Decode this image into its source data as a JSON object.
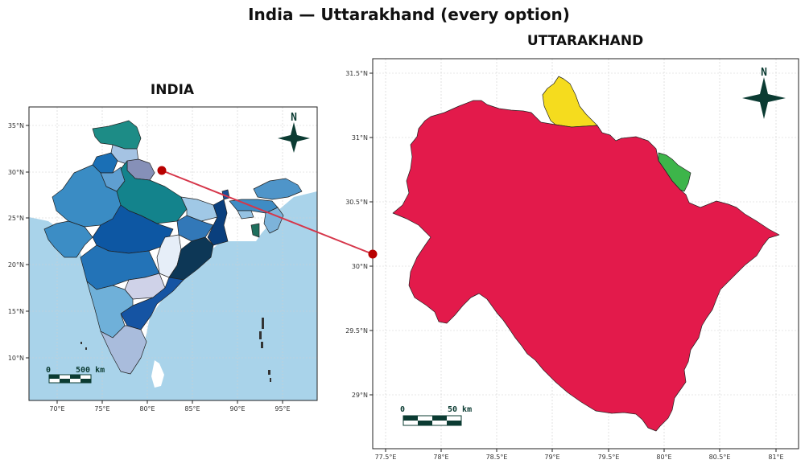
{
  "figure_title": "India — Uttarakhand  (every option)",
  "left_panel": {
    "title": "INDIA",
    "north_label": "N",
    "x_ticks": [
      "70°E",
      "75°E",
      "80°E",
      "85°E",
      "90°E",
      "95°E"
    ],
    "y_ticks": [
      "35°N",
      "30°N",
      "25°N",
      "20°N",
      "15°N",
      "10°N"
    ],
    "scalebar": {
      "zero": "0",
      "label": "500 km"
    }
  },
  "right_panel": {
    "title": "UTTARAKHAND",
    "north_label": "N",
    "x_ticks": [
      "77.5°E",
      "78°E",
      "78.5°E",
      "79°E",
      "79.5°E",
      "80°E",
      "80.5°E",
      "81°E"
    ],
    "y_ticks": [
      "31.5°N",
      "31°N",
      "30.5°N",
      "30°N",
      "29.5°N",
      "29°N"
    ],
    "scalebar": {
      "zero": "0",
      "label": "50 km"
    }
  },
  "colors": {
    "ocean": "#a9d3ea",
    "uttarakhand_fill": "#e31a4b",
    "tibet_fill": "#f5dc1e",
    "nepal_fill": "#3db54a",
    "highlight": "#b80000",
    "north_arrow": "#0b3b32"
  }
}
